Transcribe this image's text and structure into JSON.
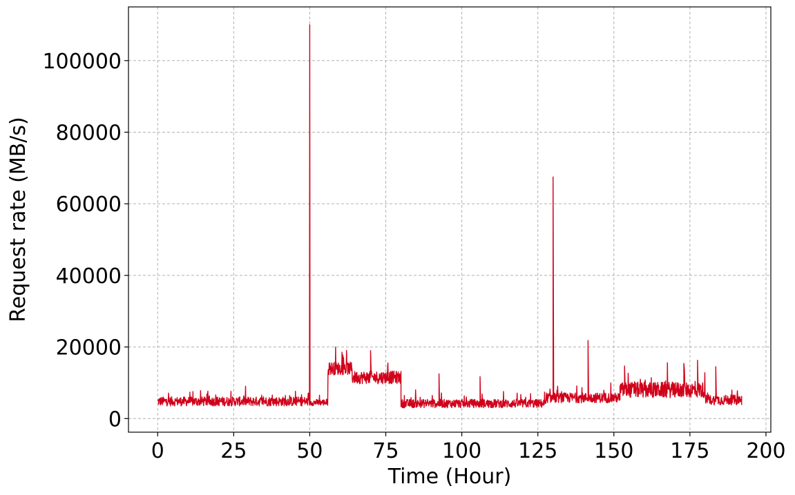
{
  "chart_data": {
    "type": "line",
    "title": "",
    "xlabel": "Time (Hour)",
    "ylabel": "Request rate (MB/s)",
    "xlim": [
      -9.6,
      201.6
    ],
    "ylim": [
      -3800,
      115000
    ],
    "xticks": [
      0,
      25,
      50,
      75,
      100,
      125,
      150,
      175,
      200
    ],
    "yticks": [
      0,
      20000,
      40000,
      60000,
      80000,
      100000
    ],
    "grid": true,
    "legend": "none",
    "series": [
      {
        "color": "#d0021b",
        "segments": [
          {
            "x0": 0,
            "x1": 50,
            "base": 4800,
            "amp": 1300
          },
          {
            "x0": 50,
            "x1": 56,
            "base": 4500,
            "amp": 900
          },
          {
            "x0": 56,
            "x1": 64,
            "base": 14000,
            "amp": 1800
          },
          {
            "x0": 64,
            "x1": 80,
            "base": 11500,
            "amp": 1800
          },
          {
            "x0": 80,
            "x1": 128,
            "base": 4200,
            "amp": 1200
          },
          {
            "x0": 128,
            "x1": 152,
            "base": 5800,
            "amp": 1400
          },
          {
            "x0": 152,
            "x1": 180,
            "base": 8000,
            "amp": 2200
          },
          {
            "x0": 180,
            "x1": 192,
            "base": 5200,
            "amp": 1400
          }
        ],
        "spikes": [
          {
            "x": 50,
            "y": 110000
          },
          {
            "x": 130,
            "y": 67500
          },
          {
            "x": 141.5,
            "y": 21800
          },
          {
            "x": 58.5,
            "y": 20000
          },
          {
            "x": 70,
            "y": 19000
          },
          {
            "x": 92.5,
            "y": 12500
          },
          {
            "x": 106,
            "y": 11700
          },
          {
            "x": 153.5,
            "y": 14700
          },
          {
            "x": 177.5,
            "y": 16300
          },
          {
            "x": 183.5,
            "y": 14500
          },
          {
            "x": 173,
            "y": 15400
          }
        ],
        "x_step": 0.1
      }
    ]
  }
}
